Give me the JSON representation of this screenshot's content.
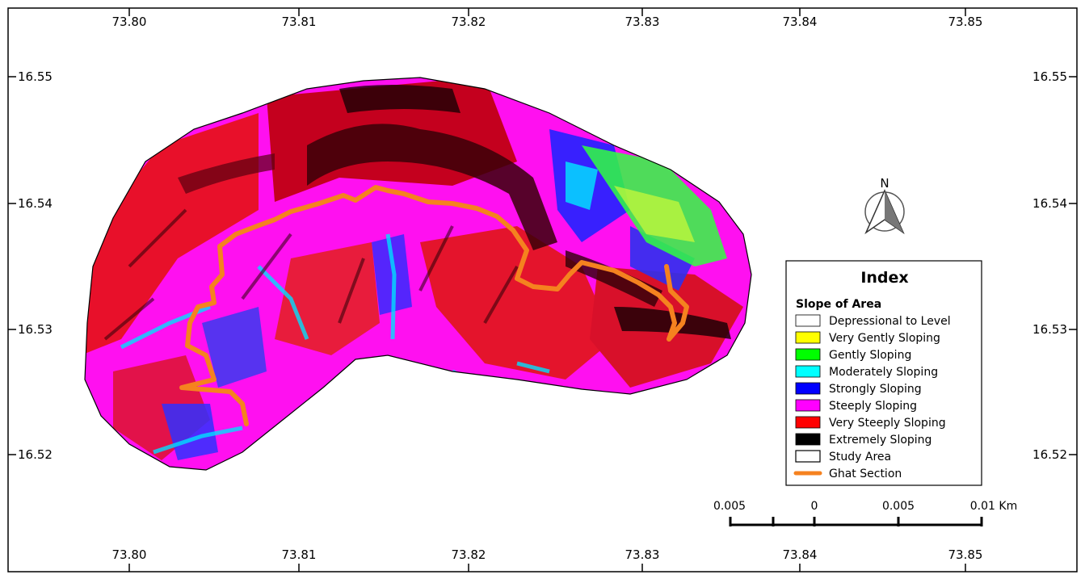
{
  "coords": {
    "lon_labels": [
      "73.80",
      "73.81",
      "73.82",
      "73.83",
      "73.84",
      "73.85"
    ],
    "lat_labels": [
      "16.55",
      "16.54",
      "16.53",
      "16.52"
    ]
  },
  "north_arrow": {
    "label": "N",
    "icon": "north-arrow-icon"
  },
  "legend": {
    "title": "Index",
    "subtitle": "Slope of Area",
    "items": [
      {
        "label": "Depressional to Level",
        "color": "#ffffff",
        "type": "box"
      },
      {
        "label": "Very Gently Sloping",
        "color": "#ffff00",
        "type": "box"
      },
      {
        "label": "Gently Sloping",
        "color": "#00ff00",
        "type": "box"
      },
      {
        "label": "Moderately Sloping",
        "color": "#00ffff",
        "type": "box"
      },
      {
        "label": "Strongly Sloping",
        "color": "#0000ff",
        "type": "box"
      },
      {
        "label": "Steeply Sloping",
        "color": "#ff00ff",
        "type": "box"
      },
      {
        "label": "Very Steeply Sloping",
        "color": "#ff0000",
        "type": "box"
      },
      {
        "label": "Extremely Sloping",
        "color": "#000000",
        "type": "box"
      },
      {
        "label": "Study Area",
        "color": "#ffffff",
        "type": "outline"
      },
      {
        "label": "Ghat Section",
        "color": "#ff8c00",
        "type": "line"
      }
    ]
  },
  "scale_bar": {
    "labels": [
      "0.005",
      "0",
      "0.005",
      "0.01 Km"
    ]
  },
  "colors": {
    "ghat_line": "#f5821f",
    "dark_red": "#8b0000",
    "study_area_outline": "#000000"
  }
}
